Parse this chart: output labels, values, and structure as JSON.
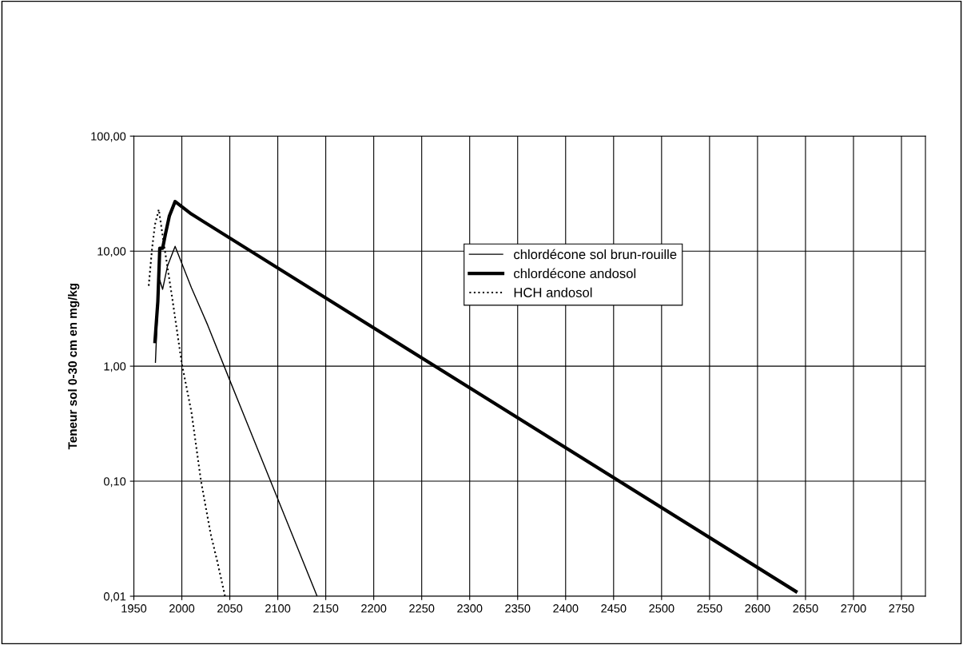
{
  "chart_data": {
    "type": "line",
    "ylabel": "Teneur sol 0-30 cm en mg/kg",
    "log": "y",
    "grid": true,
    "legend": "top",
    "xlim": [
      1950,
      2775
    ],
    "xticks": [
      1950,
      2000,
      2050,
      2100,
      2150,
      2200,
      2250,
      2300,
      2350,
      2400,
      2450,
      2500,
      2550,
      2600,
      2650,
      2700,
      2750
    ],
    "ylim": [
      0.01,
      100
    ],
    "yticks": [
      {
        "value": 0.01,
        "label": "0,01"
      },
      {
        "value": 0.1,
        "label": "0,10"
      },
      {
        "value": 1,
        "label": "1,00"
      },
      {
        "value": 10,
        "label": "10,00"
      },
      {
        "value": 100,
        "label": "100,00"
      }
    ],
    "series": [
      {
        "name": "chlordécone sol brun-rouille",
        "color": "#000000",
        "line_style": "solid",
        "x": [
          1972.5,
          1975,
          1977,
          1980,
          1985,
          1993,
          2010,
          2027,
          2049,
          2141
        ],
        "values": [
          1.08,
          3.5,
          5.6,
          4.66,
          7.4,
          11.0,
          4.8,
          2.27,
          0.79,
          0.01
        ]
      },
      {
        "name": "chlordécone andosol",
        "color": "#000000",
        "line_style": "solid",
        "x": [
          1972,
          1975,
          1977,
          1980,
          1983,
          1987,
          1993,
          2010,
          2640
        ],
        "values": [
          1.64,
          3.66,
          10.6,
          10.6,
          14.2,
          20.2,
          27,
          21,
          0.011
        ]
      },
      {
        "name": "HCH andosol",
        "color": "#000000",
        "line_style": "dotted",
        "x": [
          1965.5,
          1969,
          1972,
          1976,
          1981,
          1990,
          2000,
          2010,
          2020,
          2030,
          2037,
          2045
        ],
        "values": [
          5.0,
          10.6,
          17,
          23,
          12,
          3.9,
          1.05,
          0.4,
          0.1,
          0.035,
          0.02,
          0.01
        ]
      }
    ]
  }
}
